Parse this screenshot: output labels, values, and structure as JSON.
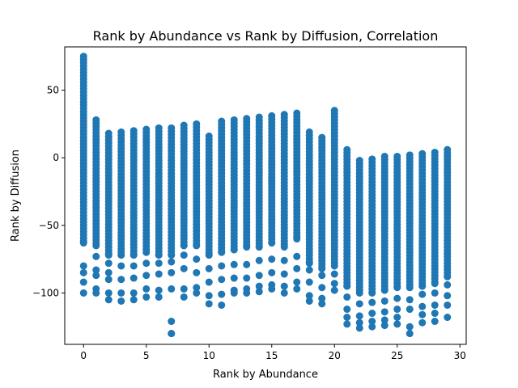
{
  "chart_data": {
    "type": "scatter",
    "title": "Rank by Abundance vs Rank by Diffusion, Correlation",
    "xlabel": "Rank by Abundance",
    "ylabel": "Rank by Diffusion",
    "xlim": [
      -1.5,
      30.5
    ],
    "ylim": [
      -138,
      82
    ],
    "xticks": [
      0,
      5,
      10,
      15,
      20,
      25,
      30
    ],
    "yticks": [
      -100,
      -50,
      0,
      50
    ],
    "marker_color": "#1f77b4",
    "grid": false,
    "columns": [
      {
        "x": 0,
        "y_max": 75,
        "y_min": -100,
        "dense_bottom": -63,
        "extra": [
          -80,
          -85,
          -92
        ]
      },
      {
        "x": 1,
        "y_max": 28,
        "y_min": -100,
        "dense_bottom": -65,
        "extra": [
          -73,
          -83,
          -87,
          -97
        ]
      },
      {
        "x": 2,
        "y_max": 18,
        "y_min": -105,
        "dense_bottom": -72,
        "extra": [
          -78,
          -85,
          -90,
          -100
        ]
      },
      {
        "x": 3,
        "y_max": 19,
        "y_min": -106,
        "dense_bottom": -72,
        "extra": [
          -80,
          -90,
          -100
        ]
      },
      {
        "x": 4,
        "y_max": 20,
        "y_min": -105,
        "dense_bottom": -72,
        "extra": [
          -80,
          -89,
          -100
        ]
      },
      {
        "x": 5,
        "y_max": 21,
        "y_min": -103,
        "dense_bottom": -70,
        "extra": [
          -78,
          -87,
          -97
        ]
      },
      {
        "x": 6,
        "y_max": 22,
        "y_min": -103,
        "dense_bottom": -72,
        "extra": [
          -78,
          -86,
          -98
        ]
      },
      {
        "x": 7,
        "y_max": 22,
        "y_min": -130,
        "dense_bottom": -72,
        "extra": [
          -77,
          -85,
          -97,
          -121,
          -130
        ]
      },
      {
        "x": 8,
        "y_max": 24,
        "y_min": -103,
        "dense_bottom": -65,
        "extra": [
          -72,
          -82,
          -97
        ]
      },
      {
        "x": 9,
        "y_max": 25,
        "y_min": -100,
        "dense_bottom": -65,
        "extra": [
          -75,
          -85,
          -96
        ]
      },
      {
        "x": 10,
        "y_max": 16,
        "y_min": -108,
        "dense_bottom": -72,
        "extra": [
          -82,
          -92,
          -102
        ]
      },
      {
        "x": 11,
        "y_max": 27,
        "y_min": -109,
        "dense_bottom": -70,
        "extra": [
          -80,
          -90,
          -101
        ]
      },
      {
        "x": 12,
        "y_max": 28,
        "y_min": -100,
        "dense_bottom": -68,
        "extra": [
          -79,
          -89,
          -98
        ]
      },
      {
        "x": 13,
        "y_max": 29,
        "y_min": -100,
        "dense_bottom": -66,
        "extra": [
          -79,
          -89,
          -97
        ]
      },
      {
        "x": 14,
        "y_max": 30,
        "y_min": -99,
        "dense_bottom": -66,
        "extra": [
          -76,
          -87,
          -95
        ]
      },
      {
        "x": 15,
        "y_max": 31,
        "y_min": -97,
        "dense_bottom": -63,
        "extra": [
          -75,
          -85,
          -94
        ]
      },
      {
        "x": 16,
        "y_max": 32,
        "y_min": -100,
        "dense_bottom": -66,
        "extra": [
          -76,
          -86,
          -95
        ]
      },
      {
        "x": 17,
        "y_max": 33,
        "y_min": -97,
        "dense_bottom": -60,
        "extra": [
          -73,
          -82,
          -92
        ]
      },
      {
        "x": 18,
        "y_max": 19,
        "y_min": -106,
        "dense_bottom": -78,
        "extra": [
          -83,
          -92,
          -102
        ]
      },
      {
        "x": 19,
        "y_max": 15,
        "y_min": -108,
        "dense_bottom": -82,
        "extra": [
          -87,
          -96,
          -104
        ]
      },
      {
        "x": 20,
        "y_max": 35,
        "y_min": -98,
        "dense_bottom": -80,
        "extra": [
          -86,
          -93
        ]
      },
      {
        "x": 21,
        "y_max": 6,
        "y_min": -123,
        "dense_bottom": -95,
        "extra": [
          -103,
          -112,
          -118
        ]
      },
      {
        "x": 22,
        "y_max": -2,
        "y_min": -126,
        "dense_bottom": -100,
        "extra": [
          -108,
          -117,
          -122
        ]
      },
      {
        "x": 23,
        "y_max": -1,
        "y_min": -125,
        "dense_bottom": -100,
        "extra": [
          -107,
          -115,
          -121
        ]
      },
      {
        "x": 24,
        "y_max": 1,
        "y_min": -124,
        "dense_bottom": -98,
        "extra": [
          -106,
          -114,
          -120
        ]
      },
      {
        "x": 25,
        "y_max": 1,
        "y_min": -123,
        "dense_bottom": -96,
        "extra": [
          -104,
          -112,
          -118
        ]
      },
      {
        "x": 26,
        "y_max": 2,
        "y_min": -130,
        "dense_bottom": -96,
        "extra": [
          -105,
          -112,
          -125
        ]
      },
      {
        "x": 27,
        "y_max": 3,
        "y_min": -122,
        "dense_bottom": -95,
        "extra": [
          -101,
          -110,
          -116
        ]
      },
      {
        "x": 28,
        "y_max": 4,
        "y_min": -121,
        "dense_bottom": -93,
        "extra": [
          -100,
          -109,
          -115
        ]
      },
      {
        "x": 29,
        "y_max": 6,
        "y_min": -118,
        "dense_bottom": -88,
        "extra": [
          -94,
          -102,
          -109
        ]
      }
    ]
  }
}
